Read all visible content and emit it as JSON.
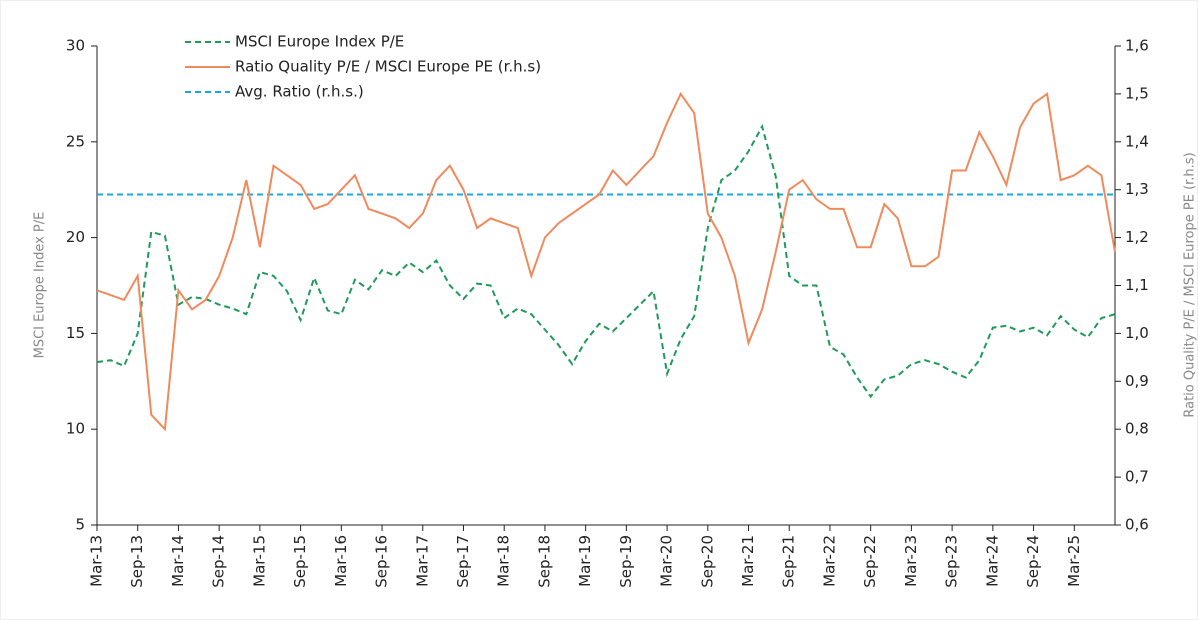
{
  "chart_data": {
    "type": "line",
    "ylabel": "MSCI Europe Index  P/E",
    "y2label": "Ratio Quality P/E / MSCI Europe PE (r.h.s)",
    "categories": [
      "Mar-13",
      null,
      null,
      "Sep-13",
      null,
      null,
      "Mar-14",
      null,
      null,
      "Sep-14",
      null,
      null,
      "Mar-15",
      null,
      null,
      "Sep-15",
      null,
      null,
      "Mar-16",
      null,
      null,
      "Sep-16",
      null,
      null,
      "Mar-17",
      null,
      null,
      "Sep-17",
      null,
      null,
      "Mar-18",
      null,
      null,
      "Sep-18",
      null,
      null,
      "Mar-19",
      null,
      null,
      "Sep-19",
      null,
      null,
      "Mar-20",
      null,
      null,
      "Sep-20",
      null,
      null,
      "Mar-21",
      null,
      null,
      "Sep-21",
      null,
      null,
      "Mar-22",
      null,
      null,
      "Sep-22",
      null,
      null,
      "Mar-23",
      null,
      null,
      "Sep-23",
      null,
      null,
      "Mar-24",
      null,
      null,
      "Sep-24",
      null,
      null,
      "Mar-25",
      null,
      null,
      null
    ],
    "series": [
      {
        "name": "MSCI Europe Index P/E",
        "color": "#1e9a5a",
        "dash": "6,4",
        "axis": "y",
        "values": [
          13.5,
          13.6,
          13.3,
          15.0,
          20.3,
          20.1,
          16.5,
          16.9,
          16.8,
          16.5,
          16.3,
          16.0,
          18.2,
          18.0,
          17.2,
          15.7,
          17.9,
          16.2,
          16.0,
          17.8,
          17.3,
          18.3,
          18.0,
          18.7,
          18.2,
          18.8,
          17.5,
          16.8,
          17.6,
          17.5,
          15.8,
          16.3,
          16.0,
          15.2,
          14.4,
          13.4,
          14.6,
          15.5,
          15.1,
          15.8,
          16.5,
          17.2,
          12.9,
          14.7,
          15.9,
          20.5,
          23.0,
          23.5,
          24.5,
          25.8,
          23.2,
          18.0,
          17.5,
          17.5,
          14.3,
          13.9,
          12.7,
          11.7,
          12.6,
          12.8,
          13.4,
          13.6,
          13.4,
          13.0,
          12.7,
          13.6,
          15.3,
          15.4,
          15.1,
          15.3,
          14.9,
          15.9,
          15.2,
          14.8,
          15.8,
          16.0
        ]
      },
      {
        "name": "Ratio Quality P/E / MSCI Europe PE (r.h.s)",
        "color": "#f08a5d",
        "dash": "none",
        "axis": "y2",
        "values": [
          1.09,
          1.08,
          1.07,
          1.12,
          0.83,
          0.8,
          1.09,
          1.05,
          1.07,
          1.12,
          1.2,
          1.32,
          1.18,
          1.35,
          1.33,
          1.31,
          1.26,
          1.27,
          1.3,
          1.33,
          1.26,
          1.25,
          1.24,
          1.22,
          1.25,
          1.32,
          1.35,
          1.3,
          1.22,
          1.24,
          1.23,
          1.22,
          1.12,
          1.2,
          1.23,
          1.25,
          1.27,
          1.29,
          1.34,
          1.31,
          1.34,
          1.37,
          1.44,
          1.5,
          1.46,
          1.25,
          1.2,
          1.12,
          0.98,
          1.05,
          1.17,
          1.3,
          1.32,
          1.28,
          1.26,
          1.26,
          1.18,
          1.18,
          1.27,
          1.24,
          1.14,
          1.14,
          1.16,
          1.34,
          1.34,
          1.42,
          1.37,
          1.31,
          1.43,
          1.48,
          1.5,
          1.32,
          1.33,
          1.35,
          1.33,
          1.17
        ]
      }
    ],
    "reference_lines": [
      {
        "name": "Avg. Ratio (r.h.s.)",
        "value": 1.29,
        "axis": "y2",
        "color": "#1ba8e0",
        "dash": "6,4"
      }
    ],
    "ylim": [
      5,
      30
    ],
    "yticks": [
      5,
      10,
      15,
      20,
      25,
      30
    ],
    "y2lim": [
      0.6,
      1.6
    ],
    "y2ticks": [
      {
        "value": 0.6,
        "label": "0,6"
      },
      {
        "value": 0.7,
        "label": "0,7"
      },
      {
        "value": 0.8,
        "label": "0,8"
      },
      {
        "value": 0.9,
        "label": "0,9"
      },
      {
        "value": 1.0,
        "label": "1,0"
      },
      {
        "value": 1.1,
        "label": "1,1"
      },
      {
        "value": 1.2,
        "label": "1,2"
      },
      {
        "value": 1.3,
        "label": "1,3"
      },
      {
        "value": 1.4,
        "label": "1,4"
      },
      {
        "value": 1.5,
        "label": "1,5"
      },
      {
        "value": 1.6,
        "label": "1,6"
      }
    ],
    "legend": "top-left"
  }
}
